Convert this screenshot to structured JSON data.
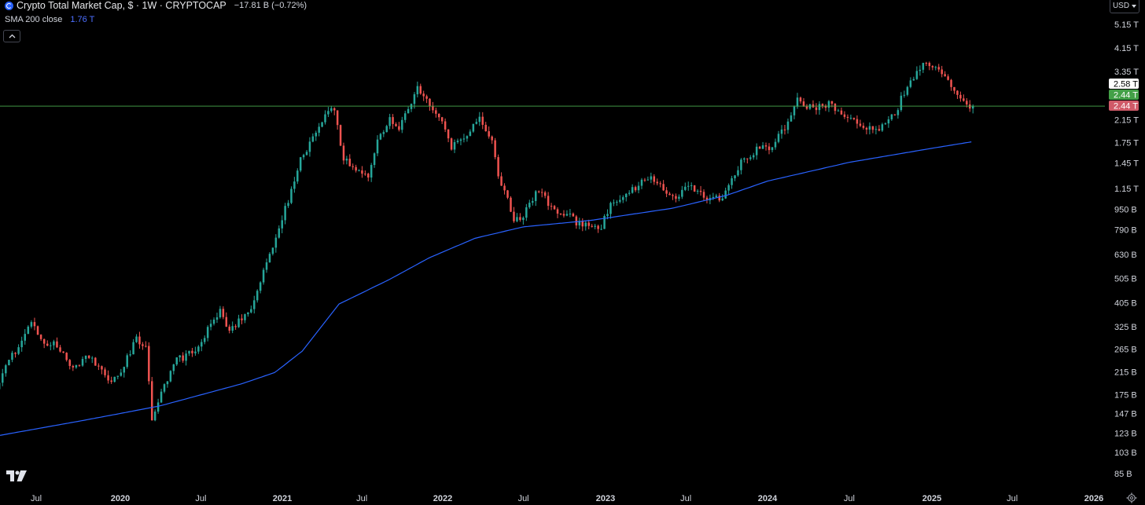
{
  "header": {
    "symbol_title": "Crypto Total Market Cap, $ · 1W · CRYPTOCAP",
    "change": "−17.81 B (−0.72%)",
    "sma_label": "SMA 200 close",
    "sma_value": "1.76 T",
    "currency": "USD"
  },
  "icons": {
    "symbol": "crypto-symbol-icon",
    "collapse": "chevron-up-icon",
    "currency_caret": "caret-down-icon",
    "logo": "tradingview-logo",
    "settings": "gear-icon"
  },
  "colors": {
    "up": "#26a69a",
    "down": "#ef5350",
    "sma": "#2962ff",
    "price_line": "#4caf50",
    "last_close_badge": "#d05a68",
    "sma_badge": "#ffffff",
    "green_badge": "#43a047"
  },
  "chart_data": {
    "type": "candlestick",
    "scale": "log",
    "interval": "1W",
    "x_labels": [
      {
        "label": "Jul",
        "date": "2019-07-01"
      },
      {
        "label": "2020",
        "date": "2020-01-01"
      },
      {
        "label": "Jul",
        "date": "2020-07-01"
      },
      {
        "label": "2021",
        "date": "2021-01-01"
      },
      {
        "label": "Jul",
        "date": "2021-07-01"
      },
      {
        "label": "2022",
        "date": "2022-01-01"
      },
      {
        "label": "Jul",
        "date": "2022-07-01"
      },
      {
        "label": "2023",
        "date": "2023-01-01"
      },
      {
        "label": "Jul",
        "date": "2023-07-01"
      },
      {
        "label": "2024",
        "date": "2024-01-01"
      },
      {
        "label": "Jul",
        "date": "2024-07-01"
      },
      {
        "label": "2025",
        "date": "2025-01-01"
      },
      {
        "label": "Jul",
        "date": "2025-07-01"
      },
      {
        "label": "2026",
        "date": "2026-01-01"
      }
    ],
    "y_ticks": [
      {
        "label": "5.15 T",
        "value": 5150
      },
      {
        "label": "4.15 T",
        "value": 4150
      },
      {
        "label": "3.35 T",
        "value": 3350
      },
      {
        "label": "2.15 T",
        "value": 2150
      },
      {
        "label": "1.75 T",
        "value": 1750
      },
      {
        "label": "1.45 T",
        "value": 1450
      },
      {
        "label": "1.15 T",
        "value": 1150
      },
      {
        "label": "950 B",
        "value": 950
      },
      {
        "label": "790 B",
        "value": 790
      },
      {
        "label": "630 B",
        "value": 630
      },
      {
        "label": "505 B",
        "value": 505
      },
      {
        "label": "405 B",
        "value": 405
      },
      {
        "label": "325 B",
        "value": 325
      },
      {
        "label": "265 B",
        "value": 265
      },
      {
        "label": "215 B",
        "value": 215
      },
      {
        "label": "175 B",
        "value": 175
      },
      {
        "label": "147 B",
        "value": 147
      },
      {
        "label": "123 B",
        "value": 123
      },
      {
        "label": "103 B",
        "value": 103
      },
      {
        "label": "85 B",
        "value": 85
      }
    ],
    "y_unit": "B",
    "y_range": [
      78,
      6200
    ],
    "x_range": [
      "2019-03-04",
      "2026-03-01"
    ],
    "price_badges": [
      {
        "label": "2.58 T",
        "value": 2580,
        "style": "white"
      },
      {
        "label": "2.44 T",
        "value": 2440,
        "style": "green"
      },
      {
        "label": "2.44 T",
        "value": 2440,
        "style": "red"
      }
    ],
    "horizontal_line": {
      "value": 2440
    },
    "price_anchors": [
      [
        "2019-03-04",
        150
      ],
      [
        "2019-04-01",
        180
      ],
      [
        "2019-05-13",
        250
      ],
      [
        "2019-06-24",
        330
      ],
      [
        "2019-07-22",
        280
      ],
      [
        "2019-08-19",
        275
      ],
      [
        "2019-09-23",
        225
      ],
      [
        "2019-10-28",
        250
      ],
      [
        "2019-12-16",
        190
      ],
      [
        "2020-01-13",
        230
      ],
      [
        "2020-02-10",
        290
      ],
      [
        "2020-03-02",
        270
      ],
      [
        "2020-03-16",
        140
      ],
      [
        "2020-04-13",
        190
      ],
      [
        "2020-05-11",
        240
      ],
      [
        "2020-06-22",
        260
      ],
      [
        "2020-07-27",
        330
      ],
      [
        "2020-08-17",
        370
      ],
      [
        "2020-09-07",
        320
      ],
      [
        "2020-10-19",
        360
      ],
      [
        "2020-11-23",
        530
      ],
      [
        "2020-12-21",
        740
      ],
      [
        "2021-01-11",
        950
      ],
      [
        "2021-02-15",
        1480
      ],
      [
        "2021-03-15",
        1800
      ],
      [
        "2021-04-12",
        2200
      ],
      [
        "2021-05-03",
        2400
      ],
      [
        "2021-05-24",
        1500
      ],
      [
        "2021-06-21",
        1350
      ],
      [
        "2021-07-19",
        1300
      ],
      [
        "2021-08-09",
        1800
      ],
      [
        "2021-09-06",
        2200
      ],
      [
        "2021-09-27",
        2000
      ],
      [
        "2021-11-08",
        2900
      ],
      [
        "2021-12-06",
        2450
      ],
      [
        "2022-01-03",
        2100
      ],
      [
        "2022-01-24",
        1650
      ],
      [
        "2022-03-28",
        2150
      ],
      [
        "2022-04-25",
        1750
      ],
      [
        "2022-05-09",
        1300
      ],
      [
        "2022-06-13",
        880
      ],
      [
        "2022-07-04",
        900
      ],
      [
        "2022-08-08",
        1150
      ],
      [
        "2022-09-05",
        960
      ],
      [
        "2022-10-03",
        930
      ],
      [
        "2022-11-07",
        830
      ],
      [
        "2022-12-26",
        810
      ],
      [
        "2023-01-16",
        1000
      ],
      [
        "2023-02-20",
        1080
      ],
      [
        "2023-04-10",
        1270
      ],
      [
        "2023-06-12",
        1070
      ],
      [
        "2023-07-10",
        1200
      ],
      [
        "2023-08-21",
        1060
      ],
      [
        "2023-09-25",
        1070
      ],
      [
        "2023-11-06",
        1450
      ],
      [
        "2023-12-11",
        1650
      ],
      [
        "2024-01-15",
        1700
      ],
      [
        "2024-02-12",
        2000
      ],
      [
        "2024-03-11",
        2600
      ],
      [
        "2024-04-15",
        2350
      ],
      [
        "2024-05-20",
        2500
      ],
      [
        "2024-06-24",
        2250
      ],
      [
        "2024-08-05",
        1980
      ],
      [
        "2024-09-09",
        1980
      ],
      [
        "2024-10-14",
        2250
      ],
      [
        "2024-11-11",
        3000
      ],
      [
        "2024-12-16",
        3550
      ],
      [
        "2025-01-20",
        3500
      ],
      [
        "2025-02-24",
        2850
      ],
      [
        "2025-03-10",
        2650
      ],
      [
        "2025-03-31",
        2440
      ]
    ],
    "sma_anchors": [
      [
        "2019-03-04",
        117
      ],
      [
        "2019-10-01",
        137
      ],
      [
        "2020-04-01",
        158
      ],
      [
        "2020-10-01",
        193
      ],
      [
        "2020-12-15",
        214
      ],
      [
        "2021-02-15",
        260
      ],
      [
        "2021-05-10",
        400
      ],
      [
        "2021-09-01",
        500
      ],
      [
        "2021-12-01",
        610
      ],
      [
        "2022-03-15",
        730
      ],
      [
        "2022-07-01",
        810
      ],
      [
        "2022-12-01",
        860
      ],
      [
        "2023-06-01",
        960
      ],
      [
        "2023-10-01",
        1080
      ],
      [
        "2024-01-01",
        1230
      ],
      [
        "2024-07-01",
        1460
      ],
      [
        "2025-01-01",
        1660
      ],
      [
        "2025-03-31",
        1760
      ]
    ]
  }
}
